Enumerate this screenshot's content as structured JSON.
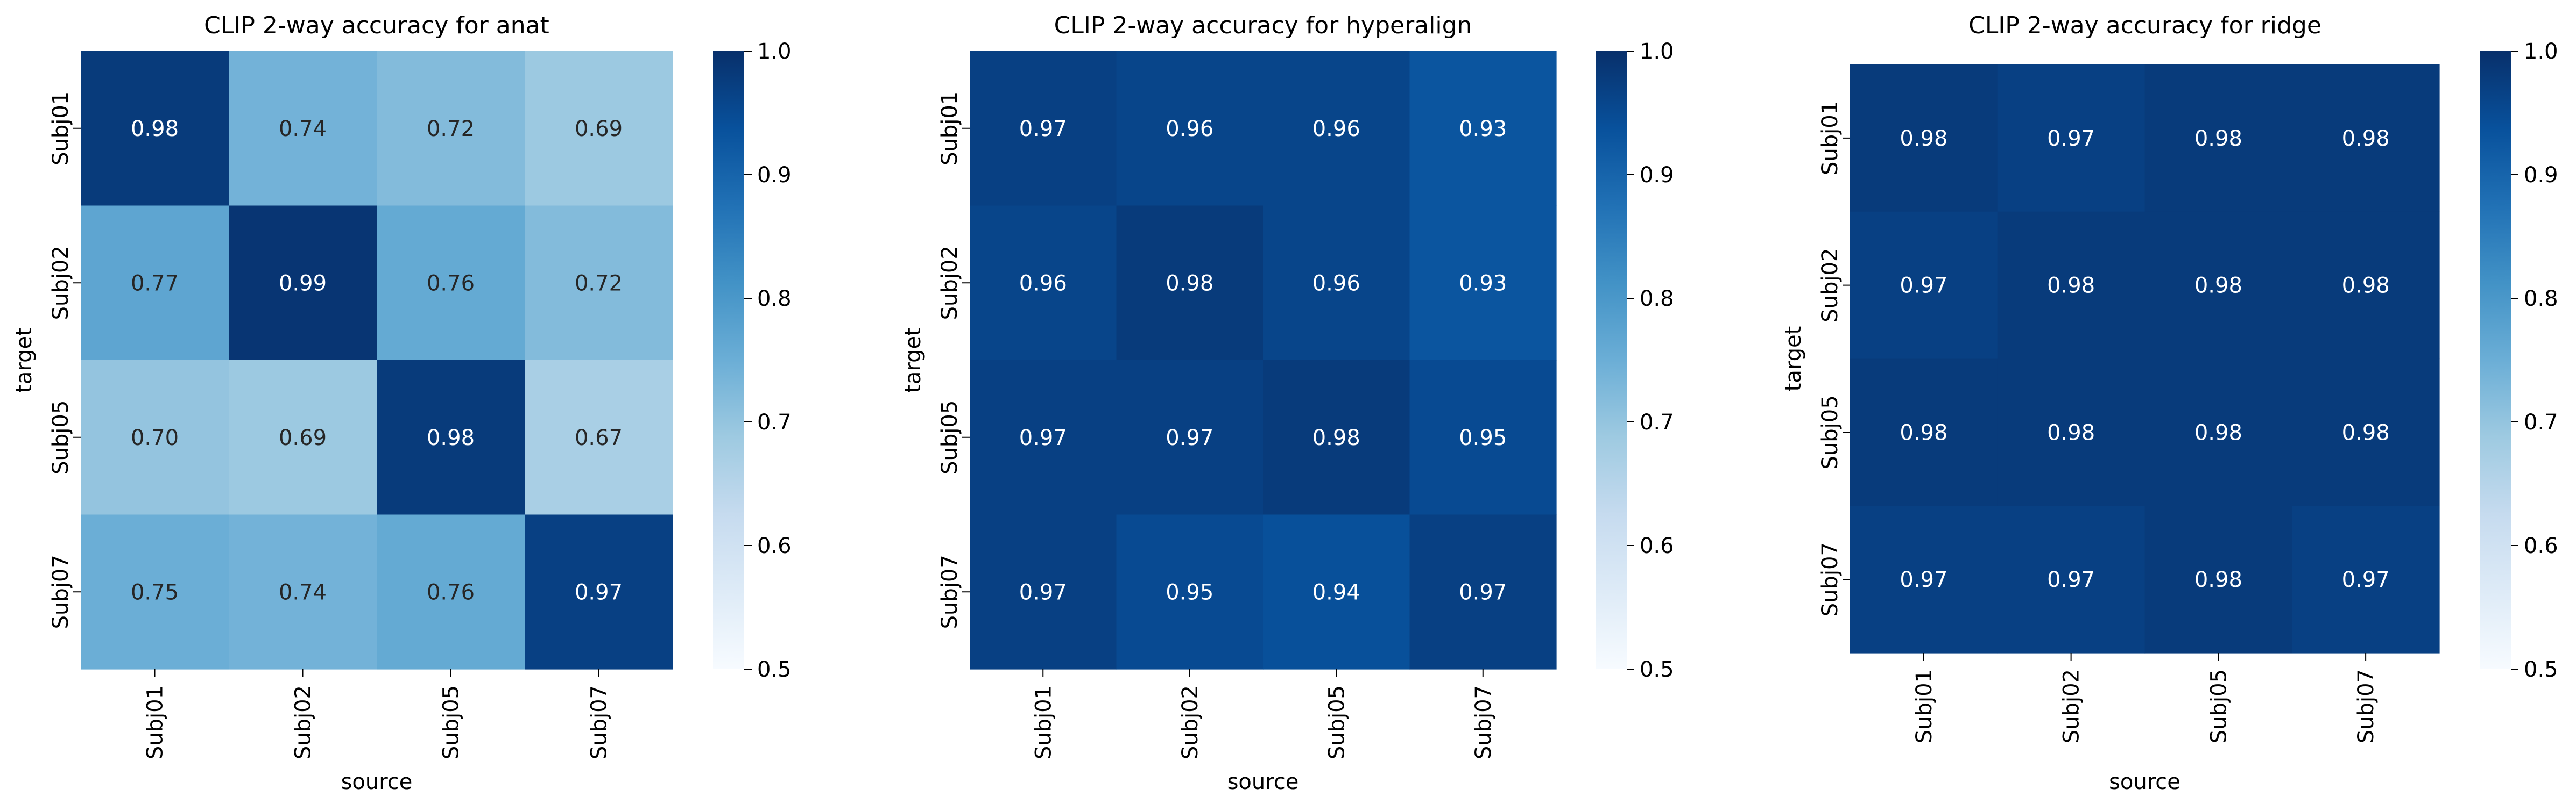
{
  "chart_data": [
    {
      "type": "heatmap",
      "title": "CLIP 2-way accuracy for anat",
      "xlabel": "source",
      "ylabel": "target",
      "x_categories": [
        "Subj01",
        "Subj02",
        "Subj05",
        "Subj07"
      ],
      "y_categories": [
        "Subj01",
        "Subj02",
        "Subj05",
        "Subj07"
      ],
      "values": [
        [
          0.98,
          0.74,
          0.72,
          0.69
        ],
        [
          0.77,
          0.99,
          0.76,
          0.72
        ],
        [
          0.7,
          0.69,
          0.98,
          0.67
        ],
        [
          0.75,
          0.74,
          0.76,
          0.97
        ]
      ],
      "annotation_format": "0.00",
      "colormap": "Blues",
      "vmin": 0.5,
      "vmax": 1.0,
      "colorbar_ticks": [
        0.5,
        0.6,
        0.7,
        0.8,
        0.9,
        1.0
      ]
    },
    {
      "type": "heatmap",
      "title": "CLIP 2-way accuracy for hyperalign",
      "xlabel": "source",
      "ylabel": "target",
      "x_categories": [
        "Subj01",
        "Subj02",
        "Subj05",
        "Subj07"
      ],
      "y_categories": [
        "Subj01",
        "Subj02",
        "Subj05",
        "Subj07"
      ],
      "values": [
        [
          0.97,
          0.96,
          0.96,
          0.93
        ],
        [
          0.96,
          0.98,
          0.96,
          0.93
        ],
        [
          0.97,
          0.97,
          0.98,
          0.95
        ],
        [
          0.97,
          0.95,
          0.94,
          0.97
        ]
      ],
      "annotation_format": "0.00",
      "colormap": "Blues",
      "vmin": 0.5,
      "vmax": 1.0,
      "colorbar_ticks": [
        0.5,
        0.6,
        0.7,
        0.8,
        0.9,
        1.0
      ]
    },
    {
      "type": "heatmap",
      "title": "CLIP 2-way accuracy for ridge",
      "xlabel": "source",
      "ylabel": "target",
      "x_categories": [
        "Subj01",
        "Subj02",
        "Subj05",
        "Subj07"
      ],
      "y_categories": [
        "Subj01",
        "Subj02",
        "Subj05",
        "Subj07"
      ],
      "values": [
        [
          0.98,
          0.97,
          0.98,
          0.98
        ],
        [
          0.97,
          0.98,
          0.98,
          0.98
        ],
        [
          0.98,
          0.98,
          0.98,
          0.98
        ],
        [
          0.97,
          0.97,
          0.98,
          0.97
        ]
      ],
      "annotation_format": "0.00",
      "colormap": "Blues",
      "vmin": 0.5,
      "vmax": 1.0,
      "colorbar_ticks": [
        0.5,
        0.6,
        0.7,
        0.8,
        0.9,
        1.0
      ]
    }
  ]
}
